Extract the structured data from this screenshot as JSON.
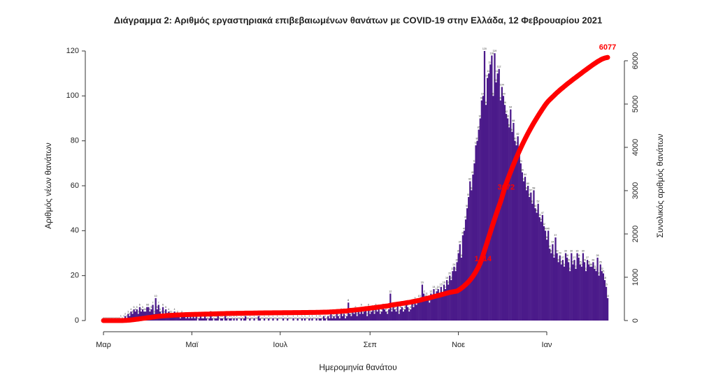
{
  "chart_data": {
    "type": "bar",
    "title": "Διάγραμμα 2: Αριθμός εργαστηριακά επιβεβαιωμένων θανάτων με COVID-19 στην Ελλάδα, 12 Φεβρουαρίου 2021",
    "x_label": "Ημερομηνία θανάτου",
    "y_label": "Αριθμός νέων θανάτων",
    "y2_label": "Συνολικός αριθμός θανάτων",
    "categories": [
      "Μαρ",
      null,
      null,
      null,
      null,
      null,
      null,
      null,
      null,
      null,
      null,
      null,
      null,
      null,
      null,
      null,
      null,
      null,
      null,
      null,
      null,
      null,
      null,
      null,
      null,
      null,
      null,
      null,
      null,
      null,
      null,
      null,
      null,
      null,
      null,
      null,
      null,
      null,
      null,
      null,
      null,
      null,
      null,
      null,
      null,
      null,
      null,
      null,
      null,
      null,
      null,
      null,
      null,
      null,
      null,
      null,
      null,
      null,
      null,
      null,
      null,
      "Μαϊ",
      null,
      null,
      null,
      null,
      null,
      null,
      null,
      null,
      null,
      null,
      null,
      null,
      null,
      null,
      null,
      null,
      null,
      null,
      null,
      null,
      null,
      null,
      null,
      null,
      null,
      null,
      null,
      null,
      null,
      null,
      null,
      null,
      null,
      null,
      null,
      null,
      null,
      null,
      null,
      null,
      null,
      null,
      null,
      null,
      null,
      null,
      null,
      null,
      null,
      null,
      null,
      null,
      null,
      null,
      null,
      null,
      null,
      null,
      null,
      null,
      "Ιουλ",
      null,
      null,
      null,
      null,
      null,
      null,
      null,
      null,
      null,
      null,
      null,
      null,
      null,
      null,
      null,
      null,
      null,
      null,
      null,
      null,
      null,
      null,
      null,
      null,
      null,
      null,
      null,
      null,
      null,
      null,
      null,
      null,
      null,
      null,
      null,
      null,
      null,
      null,
      null,
      null,
      null,
      null,
      null,
      null,
      null,
      null,
      null,
      null,
      null,
      null,
      null,
      null,
      null,
      null,
      null,
      null,
      null,
      null,
      null,
      null,
      null,
      "Σεπ",
      null,
      null,
      null,
      null,
      null,
      null,
      null,
      null,
      null,
      null,
      null,
      null,
      null,
      null,
      null,
      null,
      null,
      null,
      null,
      null,
      null,
      null,
      null,
      null,
      null,
      null,
      null,
      null,
      null,
      null,
      null,
      null,
      null,
      null,
      null,
      null,
      null,
      null,
      null,
      null,
      null,
      null,
      null,
      null,
      null,
      null,
      null,
      null,
      null,
      null,
      null,
      null,
      null,
      null,
      null,
      null,
      null,
      null,
      null,
      null,
      "Νοε",
      null,
      null,
      null,
      null,
      null,
      null,
      null,
      null,
      null,
      null,
      null,
      null,
      null,
      null,
      null,
      null,
      null,
      null,
      null,
      null,
      null,
      null,
      null,
      null,
      null,
      null,
      null,
      null,
      null,
      null,
      null,
      null,
      null,
      null,
      null,
      null,
      null,
      null,
      null,
      null,
      null,
      null,
      null,
      null,
      null,
      null,
      null,
      null,
      null,
      null,
      null,
      null,
      null,
      null,
      null,
      null,
      null,
      null,
      null,
      null,
      "Ιαν",
      null,
      null,
      null,
      null,
      null,
      null,
      null,
      null,
      null,
      null,
      null,
      null,
      null,
      null,
      null,
      null,
      null,
      null,
      null,
      null,
      null,
      null,
      null,
      null,
      null,
      null,
      null,
      null,
      null,
      null,
      null,
      null,
      null,
      null,
      null,
      null,
      null,
      null,
      null,
      null,
      null,
      null
    ],
    "series": [
      {
        "color": "#4b1a8a",
        "values": [
          0,
          0,
          0,
          0,
          0,
          0,
          0,
          0,
          0,
          0,
          0,
          0,
          1,
          0,
          1,
          2,
          1,
          3,
          2,
          4,
          3,
          5,
          4,
          5,
          3,
          6,
          4,
          5,
          4,
          4,
          6,
          6,
          4,
          5,
          7,
          3,
          10,
          5,
          7,
          4,
          3,
          6,
          3,
          5,
          2,
          4,
          3,
          3,
          2,
          4,
          2,
          3,
          2,
          1,
          3,
          2,
          2,
          1,
          2,
          1,
          2,
          1,
          2,
          1,
          2,
          0,
          1,
          2,
          1,
          1,
          2,
          1,
          0,
          1,
          3,
          1,
          0,
          1,
          1,
          2,
          0,
          1,
          1,
          0,
          2,
          1,
          0,
          1,
          1,
          0,
          1,
          0,
          1,
          0,
          0,
          1,
          0,
          1,
          2,
          0,
          0,
          1,
          0,
          0,
          1,
          0,
          0,
          2,
          1,
          0,
          0,
          1,
          0,
          0,
          1,
          0,
          0,
          1,
          0,
          0,
          1,
          0,
          0,
          0,
          1,
          0,
          0,
          1,
          0,
          0,
          0,
          1,
          0,
          0,
          1,
          0,
          0,
          1,
          0,
          1,
          0,
          0,
          1,
          0,
          1,
          0,
          0,
          1,
          0,
          1,
          1,
          0,
          2,
          1,
          0,
          2,
          1,
          3,
          1,
          2,
          1,
          3,
          2,
          1,
          4,
          2,
          3,
          1,
          2,
          8,
          3,
          2,
          4,
          3,
          5,
          2,
          4,
          3,
          6,
          3,
          4,
          5,
          2,
          6,
          3,
          4,
          5,
          3,
          6,
          4,
          5,
          3,
          4,
          6,
          5,
          4,
          3,
          5,
          12,
          4,
          6,
          5,
          4,
          7,
          3,
          5,
          6,
          4,
          5,
          7,
          6,
          4,
          5,
          8,
          6,
          9,
          7,
          8,
          10,
          9,
          16,
          12,
          10,
          11,
          9,
          8,
          12,
          10,
          14,
          10,
          13,
          14,
          11,
          15,
          12,
          16,
          14,
          18,
          16,
          20,
          18,
          22,
          24,
          22,
          26,
          30,
          34,
          28,
          38,
          40,
          45,
          50,
          55,
          62,
          58,
          65,
          70,
          78,
          80,
          85,
          90,
          98,
          100,
          120,
          96,
          108,
          110,
          114,
          118,
          100,
          119,
          106,
          110,
          112,
          98,
          104,
          100,
          96,
          92,
          90,
          86,
          94,
          84,
          88,
          80,
          78,
          82,
          74,
          70,
          66,
          62,
          64,
          58,
          60,
          55,
          57,
          52,
          58,
          50,
          48,
          52,
          46,
          44,
          47,
          42,
          40,
          36,
          40,
          32,
          30,
          34,
          28,
          37,
          30,
          26,
          29,
          25,
          27,
          24,
          30,
          28,
          26,
          22,
          30,
          25,
          27,
          23,
          30,
          28,
          25,
          24,
          30,
          26,
          22,
          27,
          25,
          24,
          24,
          26,
          23,
          22,
          28,
          20,
          25,
          22,
          21,
          18,
          15,
          10
        ]
      },
      {
        "color": "#ff0000",
        "axis": "y2",
        "values": [
          0,
          0,
          0,
          0,
          0,
          0,
          0,
          0,
          0,
          0,
          0,
          0,
          1,
          1,
          2,
          4,
          5,
          8,
          10,
          14,
          17,
          22,
          26,
          31,
          34,
          40,
          44,
          49,
          53,
          57,
          63,
          68,
          71,
          75,
          80,
          83,
          90,
          94,
          98,
          101,
          103,
          107,
          109,
          112,
          114,
          117,
          119,
          121,
          123,
          126,
          127,
          129,
          130,
          131,
          133,
          134,
          136,
          137,
          138,
          139,
          140,
          141,
          142,
          143,
          144,
          144,
          145,
          146,
          147,
          148,
          149,
          150,
          150,
          151,
          153,
          154,
          154,
          155,
          156,
          158,
          158,
          159,
          160,
          160,
          162,
          163,
          163,
          164,
          165,
          165,
          166,
          166,
          167,
          167,
          167,
          168,
          168,
          169,
          171,
          171,
          171,
          172,
          172,
          172,
          173,
          173,
          173,
          175,
          176,
          176,
          176,
          177,
          177,
          177,
          178,
          178,
          178,
          179,
          179,
          179,
          180,
          180,
          180,
          180,
          181,
          181,
          181,
          182,
          182,
          182,
          182,
          183,
          183,
          183,
          184,
          184,
          184,
          185,
          185,
          186,
          186,
          186,
          187,
          187,
          188,
          188,
          188,
          189,
          189,
          190,
          191,
          191,
          193,
          194,
          194,
          196,
          197,
          200,
          201,
          203,
          204,
          207,
          209,
          210,
          214,
          216,
          219,
          220,
          222,
          230,
          233,
          235,
          239,
          242,
          247,
          249,
          253,
          256,
          262,
          265,
          269,
          274,
          276,
          282,
          285,
          289,
          294,
          297,
          303,
          307,
          312,
          315,
          319,
          325,
          330,
          334,
          337,
          342,
          354,
          358,
          364,
          369,
          373,
          380,
          383,
          388,
          394,
          398,
          403,
          410,
          416,
          420,
          425,
          433,
          440,
          447,
          453,
          460,
          468,
          476,
          486,
          494,
          502,
          510,
          518,
          525,
          534,
          542,
          552,
          560,
          569,
          578,
          586,
          596,
          604,
          614,
          622,
          632,
          640,
          650,
          656,
          662,
          668,
          674,
          680,
          700,
          722,
          746,
          772,
          800,
          830,
          862,
          896,
          934,
          976,
          1022,
          1072,
          1126,
          1186,
          1252,
          1322,
          1414,
          1512,
          1614,
          1718,
          1824,
          1930,
          2036,
          2140,
          2244,
          2346,
          2446,
          2544,
          2640,
          2734,
          2840,
          2956,
          3072,
          3165,
          3256,
          3345,
          3432,
          3517,
          3600,
          3681,
          3760,
          3837,
          3912,
          3985,
          4056,
          4125,
          4192,
          4258,
          4322,
          4384,
          4445,
          4504,
          4562,
          4618,
          4673,
          4727,
          4780,
          4832,
          4883,
          4933,
          4982,
          5025,
          5066,
          5100,
          5132,
          5165,
          5196,
          5230,
          5262,
          5291,
          5321,
          5349,
          5377,
          5404,
          5432,
          5460,
          5487,
          5511,
          5538,
          5564,
          5590,
          5614,
          5640,
          5666,
          5691,
          5715,
          5742,
          5767,
          5790,
          5815,
          5840,
          5864,
          5888,
          5912,
          5934,
          5956,
          5980,
          5998,
          6018,
          6036,
          6050,
          6062,
          6070,
          6077
        ]
      }
    ],
    "annotations": [
      "1414",
      "3072",
      "6077"
    ],
    "ylim": [
      0,
      120
    ],
    "yticks": [
      0,
      20,
      40,
      60,
      80,
      100,
      120
    ],
    "y2lim": [
      0,
      6000
    ],
    "y2ticks": [
      0,
      1000,
      2000,
      3000,
      4000,
      5000,
      6000
    ]
  }
}
